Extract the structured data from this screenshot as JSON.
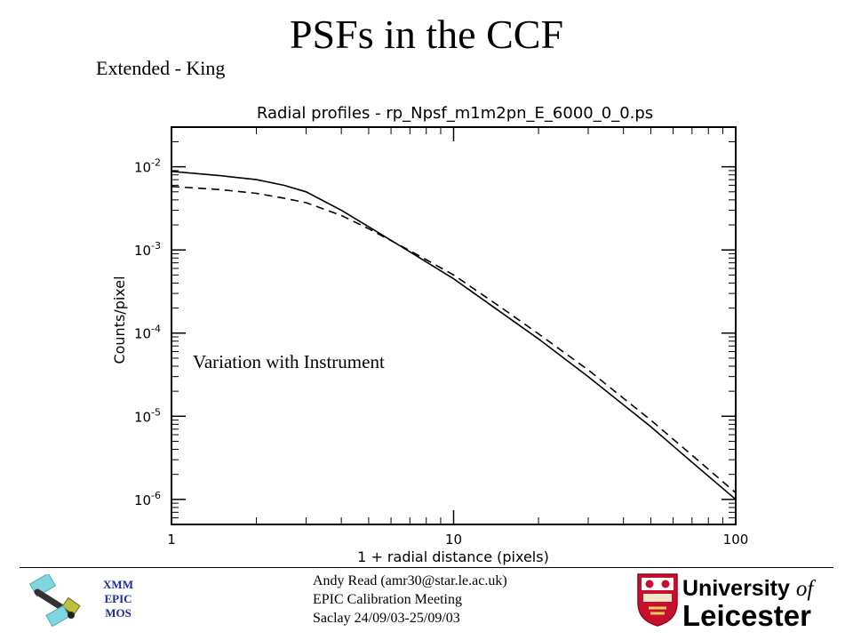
{
  "slide": {
    "title": "PSFs in the CCF",
    "subtitle": "Extended - King",
    "annotation": "Variation with Instrument"
  },
  "footer": {
    "mission_lines": [
      "XMM",
      "EPIC",
      "MOS"
    ],
    "lines": [
      "Andy Read (amr30@star.le.ac.uk)",
      "EPIC Calibration Meeting",
      "Saclay 24/09/03-25/09/03"
    ],
    "university_line1": "University",
    "university_of": "of",
    "university_line2": "Leicester",
    "mission_color": "#1a2aa0",
    "crest_color": "#c8102e"
  },
  "chart_data": {
    "type": "line",
    "title": "Radial profiles - rp_Npsf_m1m2pn_E_6000_0_0.ps",
    "xlabel": "1 + radial distance (pixels)",
    "ylabel": "Counts/pixel",
    "xscale": "log",
    "yscale": "log",
    "xlim": [
      1,
      100
    ],
    "ylim": [
      5e-07,
      0.03
    ],
    "xticks": [
      {
        "value": 1,
        "label": "1"
      },
      {
        "value": 10,
        "label": "10"
      },
      {
        "value": 100,
        "label": "100"
      }
    ],
    "yticks": [
      {
        "value": 1e-06,
        "base": "10",
        "exp": "-6"
      },
      {
        "value": 1e-05,
        "base": "10",
        "exp": "-5"
      },
      {
        "value": 0.0001,
        "base": "10",
        "exp": "-4"
      },
      {
        "value": 0.001,
        "base": "10",
        "exp": "-3"
      },
      {
        "value": 0.01,
        "base": "10",
        "exp": "-2"
      }
    ],
    "grid": false,
    "legend": "none",
    "series": [
      {
        "style": "solid",
        "x": [
          1,
          1.5,
          2,
          2.5,
          3,
          4,
          5,
          7,
          10,
          15,
          20,
          30,
          50,
          70,
          100
        ],
        "y": [
          0.0088,
          0.0078,
          0.007,
          0.006,
          0.005,
          0.003,
          0.0019,
          0.00095,
          0.00045,
          0.00017,
          8.5e-05,
          3e-05,
          7.5e-06,
          2.8e-06,
          1e-06
        ]
      },
      {
        "style": "dashed",
        "x": [
          1,
          1.5,
          2,
          2.5,
          3,
          4,
          5,
          7,
          10,
          15,
          20,
          30,
          50,
          70,
          100
        ],
        "y": [
          0.0058,
          0.0053,
          0.0048,
          0.0042,
          0.0037,
          0.0026,
          0.0018,
          0.00098,
          0.0005,
          0.000195,
          9.8e-05,
          3.6e-05,
          9e-06,
          3.4e-06,
          1.2e-06
        ]
      }
    ]
  }
}
